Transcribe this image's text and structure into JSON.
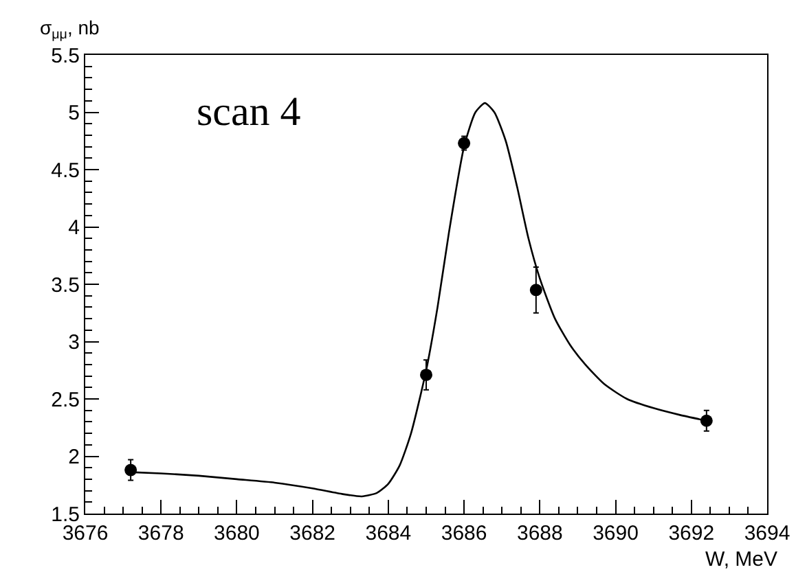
{
  "chart_data": {
    "type": "scatter",
    "xlabel": "W, MeV",
    "ylabel": "σ$_{μμ}$, nb",
    "annotations": [
      "scan 4"
    ],
    "xlim": [
      3676,
      3694
    ],
    "xticks": [
      3676,
      3678,
      3680,
      3682,
      3684,
      3686,
      3688,
      3690,
      3692,
      3694
    ],
    "ylim": [
      1.5,
      5.5
    ],
    "yticks": [
      1.5,
      2,
      2.5,
      3,
      3.5,
      4,
      4.5,
      5,
      5.5
    ],
    "marker": "circle",
    "series": [
      {
        "color": "#000000",
        "x": [
          3677.2,
          3685.0,
          3686.0,
          3687.9,
          3692.4
        ],
        "values": [
          1.88,
          2.71,
          4.73,
          3.45,
          2.31
        ],
        "errors": [
          0.09,
          0.13,
          0.06,
          0.2,
          0.09
        ]
      },
      {
        "type": "line",
        "color": "#000000",
        "marker": "none",
        "line_style": "solid",
        "x": [
          3677.3,
          3678,
          3679,
          3680,
          3681,
          3682,
          3682.8,
          3683.3,
          3683.7,
          3684,
          3684.3,
          3684.6,
          3685,
          3685.3,
          3685.6,
          3686,
          3686.3,
          3686.55,
          3686.8,
          3687.1,
          3687.4,
          3687.7,
          3688,
          3688.4,
          3688.8,
          3689.2,
          3689.7,
          3690.3,
          3691,
          3691.7,
          3692.4
        ],
        "values": [
          1.86,
          1.85,
          1.83,
          1.8,
          1.77,
          1.72,
          1.67,
          1.65,
          1.68,
          1.76,
          1.92,
          2.2,
          2.75,
          3.3,
          3.95,
          4.7,
          5.0,
          5.08,
          5.0,
          4.75,
          4.35,
          3.9,
          3.55,
          3.2,
          2.97,
          2.8,
          2.63,
          2.5,
          2.42,
          2.36,
          2.31
        ]
      }
    ]
  }
}
